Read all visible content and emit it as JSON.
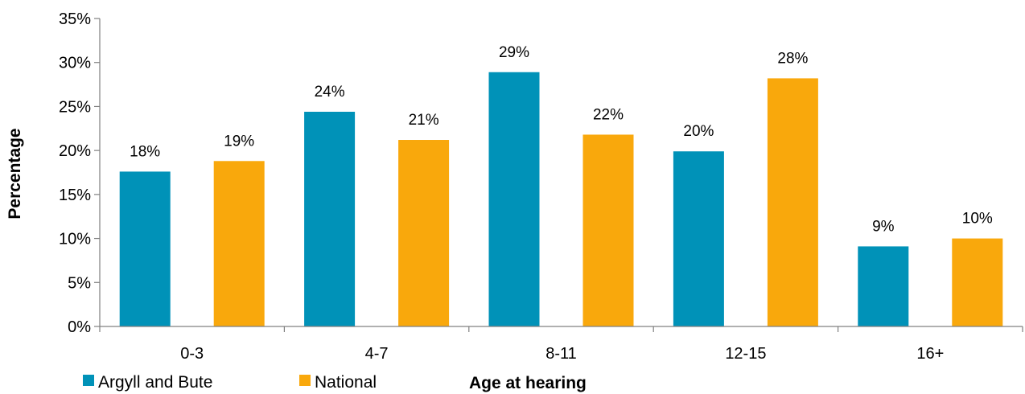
{
  "chart_data": {
    "type": "bar",
    "categories": [
      "0-3",
      "4-7",
      "8-11",
      "12-15",
      "16+"
    ],
    "series": [
      {
        "name": "Argyll and Bute",
        "color": "#0092b8",
        "values": [
          17.6,
          24.4,
          28.9,
          19.9,
          9.1
        ],
        "labels": [
          "18%",
          "24%",
          "29%",
          "20%",
          "9%"
        ]
      },
      {
        "name": "National",
        "color": "#f9a80c",
        "values": [
          18.8,
          21.2,
          21.8,
          28.2,
          10.0
        ],
        "labels": [
          "19%",
          "21%",
          "22%",
          "28%",
          "10%"
        ]
      }
    ],
    "xlabel": "Age at hearing",
    "ylabel": "Percentage",
    "ylim": [
      0,
      35
    ],
    "yticks": [
      0,
      5,
      10,
      15,
      20,
      25,
      30,
      35
    ],
    "ytick_labels": [
      "0%",
      "5%",
      "10%",
      "15%",
      "20%",
      "25%",
      "30%",
      "35%"
    ],
    "grid": false,
    "legend_position": "bottom-left"
  }
}
